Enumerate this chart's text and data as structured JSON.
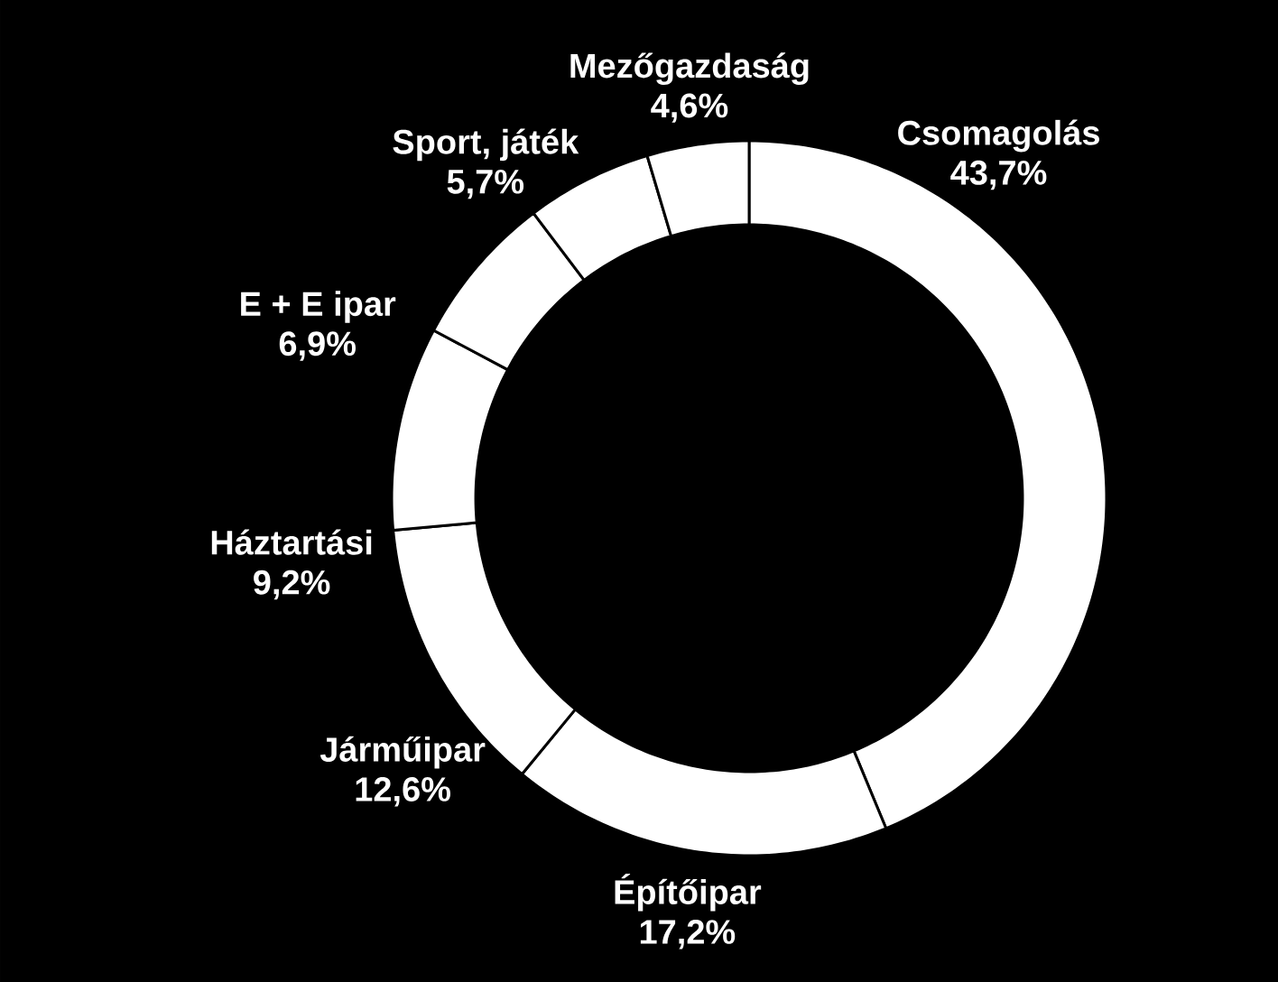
{
  "chart_data": {
    "type": "donut",
    "categories": [
      "Csomagolás",
      "Építőipar",
      "Járműipar",
      "Háztartási",
      "E + E ipar",
      "Sport, játék",
      "Mezőgazdaság"
    ],
    "values": [
      43.7,
      17.2,
      12.6,
      9.2,
      6.9,
      5.7,
      4.6
    ],
    "colors": [
      "#ffffff",
      "#ffffff",
      "#ffffff",
      "#ffffff",
      "#ffffff",
      "#ffffff",
      "#ffffff"
    ],
    "value_labels": [
      "43,7%",
      "17,2%",
      "12,6%",
      "9,2%",
      "6,9%",
      "5,7%",
      "4,6%"
    ]
  }
}
